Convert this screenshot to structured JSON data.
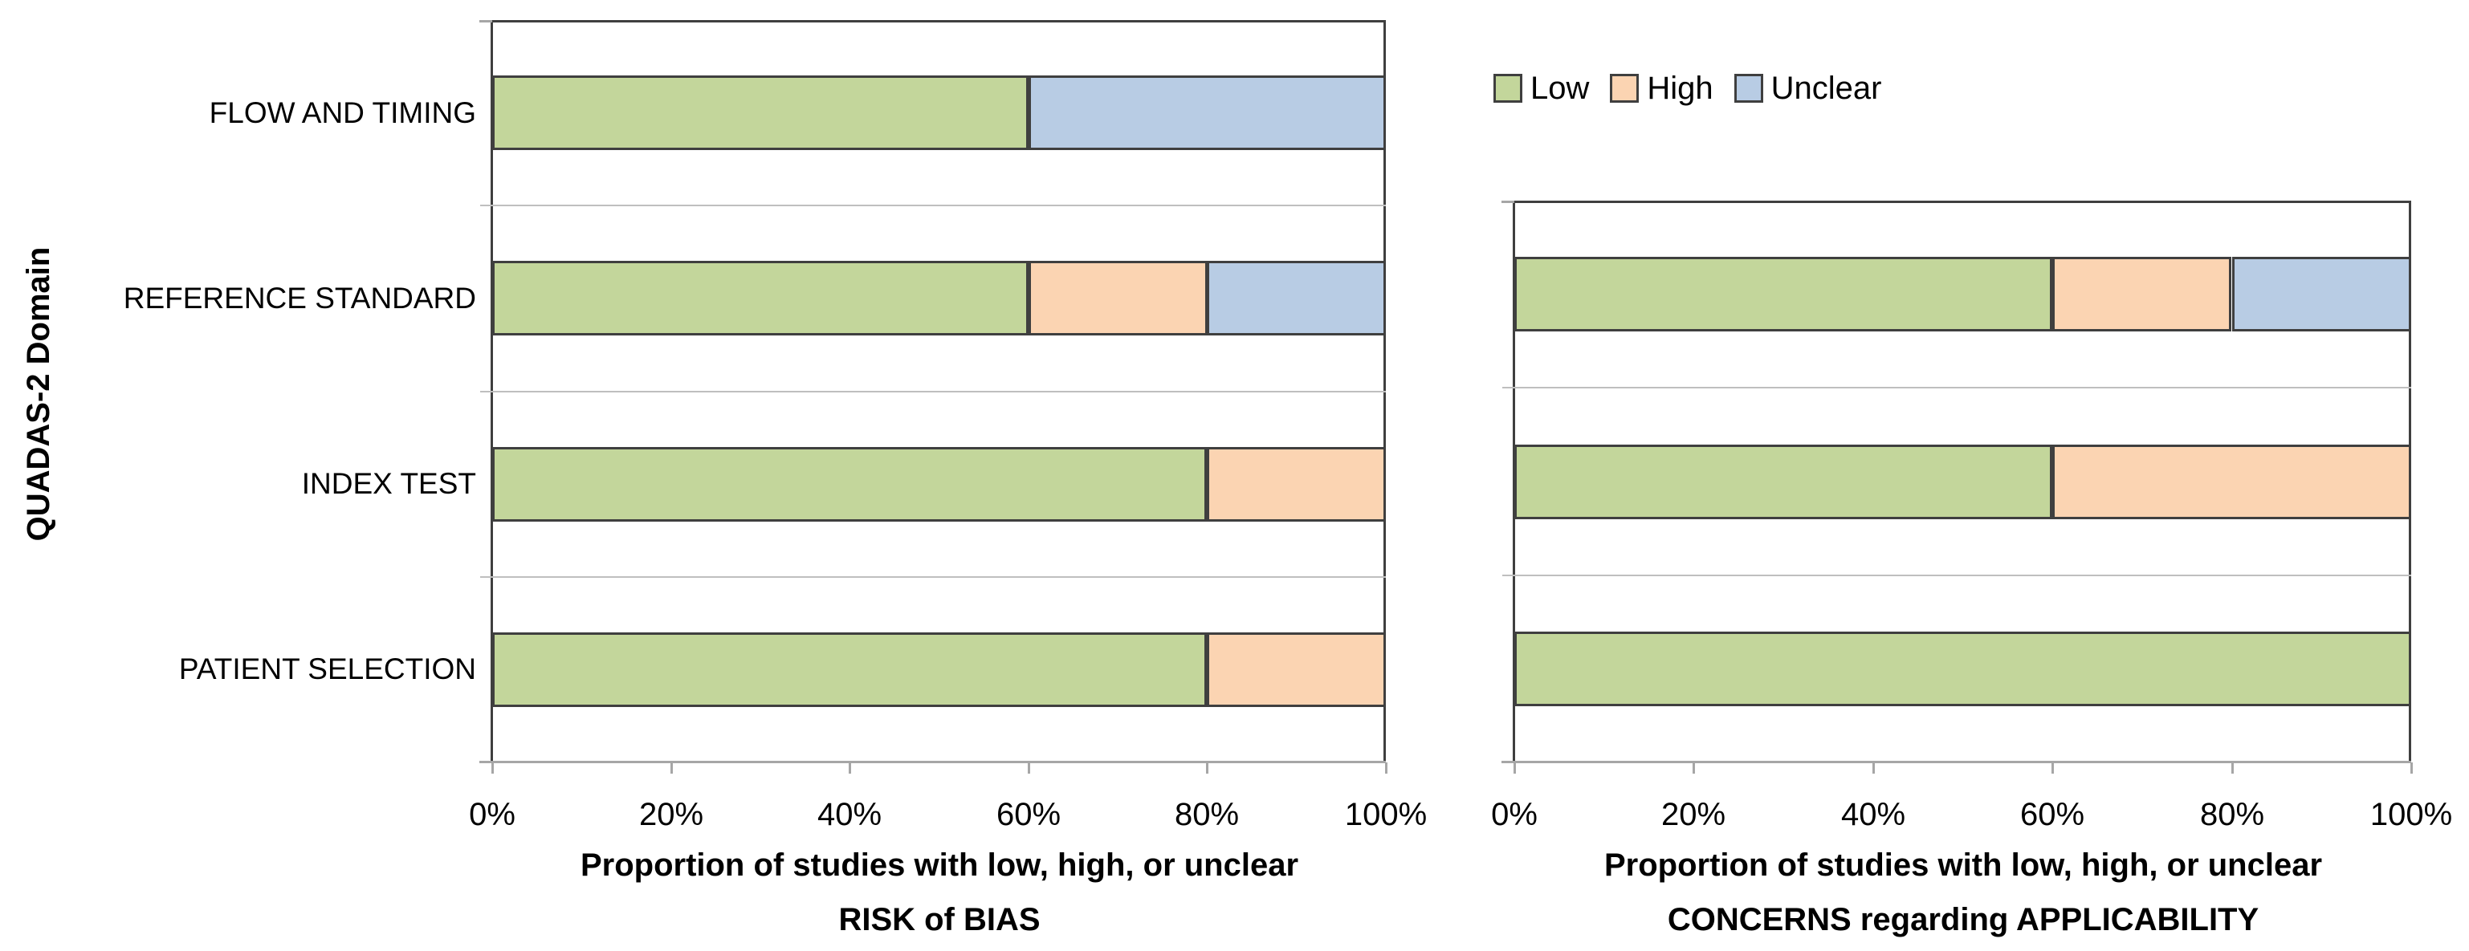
{
  "figure": {
    "y_axis_title": "QUADAS-2 Domain",
    "background": "#ffffff"
  },
  "legend": {
    "position": "top-right",
    "items": [
      {
        "label": "Low",
        "color": "#c3d69b"
      },
      {
        "label": "High",
        "color": "#fbd4b2"
      },
      {
        "label": "Unclear",
        "color": "#b8cce4"
      }
    ]
  },
  "colors": {
    "bar_border": "#3f3f3f",
    "plot_border": "#3f3f3f",
    "separator": "#bfbfbf",
    "axis": "#a6a6a6",
    "text": "#000000"
  },
  "chart_data": [
    {
      "id": "risk-of-bias",
      "type": "bar",
      "orientation": "horizontal",
      "stacked": true,
      "xlabel_lines": [
        "Proportion of studies with low, high, or unclear",
        "RISK of BIAS"
      ],
      "ylabel": "QUADAS-2 Domain",
      "categories": [
        "FLOW AND TIMING",
        "REFERENCE STANDARD",
        "INDEX TEST",
        "PATIENT SELECTION"
      ],
      "series": [
        {
          "name": "Low",
          "color": "#c3d69b",
          "values": [
            60,
            60,
            80,
            80
          ]
        },
        {
          "name": "High",
          "color": "#fbd4b2",
          "values": [
            0,
            20,
            20,
            20
          ]
        },
        {
          "name": "Unclear",
          "color": "#b8cce4",
          "values": [
            40,
            20,
            0,
            0
          ]
        }
      ],
      "x_ticks": [
        "0%",
        "20%",
        "40%",
        "60%",
        "80%",
        "100%"
      ],
      "xlim": [
        0,
        100
      ],
      "grid": false,
      "show_category_labels": true
    },
    {
      "id": "applicability",
      "type": "bar",
      "orientation": "horizontal",
      "stacked": true,
      "xlabel_lines": [
        "Proportion of studies with low, high, or unclear",
        "CONCERNS regarding APPLICABILITY"
      ],
      "ylabel": "",
      "categories": [
        "REFERENCE STANDARD",
        "INDEX TEST",
        "PATIENT SELECTION"
      ],
      "series": [
        {
          "name": "Low",
          "color": "#c3d69b",
          "values": [
            60,
            60,
            100
          ]
        },
        {
          "name": "High",
          "color": "#fbd4b2",
          "values": [
            20,
            40,
            0
          ]
        },
        {
          "name": "Unclear",
          "color": "#b8cce4",
          "values": [
            20,
            0,
            0
          ]
        }
      ],
      "x_ticks": [
        "0%",
        "20%",
        "40%",
        "60%",
        "80%",
        "100%"
      ],
      "xlim": [
        0,
        100
      ],
      "grid": false,
      "show_category_labels": false
    }
  ]
}
